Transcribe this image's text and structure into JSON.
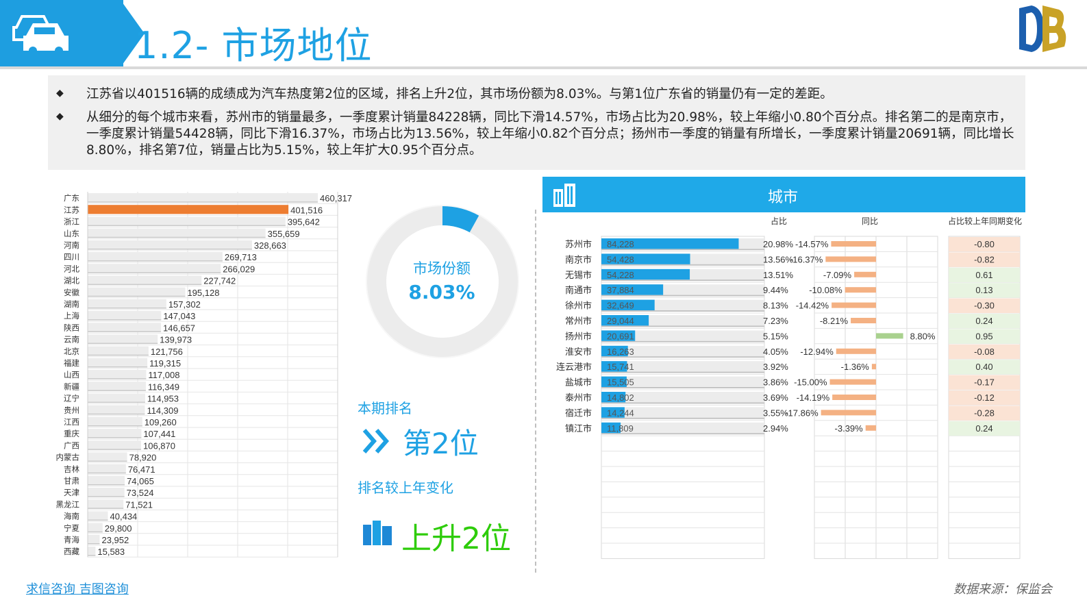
{
  "header": {
    "title": "1.2- 市场地位"
  },
  "summary": {
    "p1": "江苏省以401516辆的成绩成为汽车热度第2位的区域，排名上升2位，其市场份额为8.03%。与第1位广东省的销量仍有一定的差距。",
    "p2": "从细分的每个城市来看，苏州市的销量最多，一季度累计销量84228辆，同比下滑14.57%，市场占比为20.98%，较上年缩小0.80个百分点。排名第二的是南京市，一季度累计销量54428辆，同比下滑16.37%，市场占比为13.56%，较上年缩小0.82个百分点；扬州市一季度的销量有所增长，一季度累计销量20691辆，同比增长8.80%，排名第7位，销量占比为5.15%，较上年扩大0.95个百分点。"
  },
  "colors": {
    "accent": "#1ea1e3",
    "highlight": "#ed7d31",
    "neg": "#f4b183",
    "pos": "#a9d18e",
    "green_text": "#2ecc0a"
  },
  "chart_data": [
    {
      "type": "bar",
      "categories": [
        "广东",
        "江苏",
        "浙江",
        "山东",
        "河南",
        "四川",
        "河北",
        "湖北",
        "安徽",
        "湖南",
        "上海",
        "陕西",
        "云南",
        "北京",
        "福建",
        "山西",
        "新疆",
        "辽宁",
        "贵州",
        "江西",
        "重庆",
        "广西",
        "内蒙古",
        "吉林",
        "甘肃",
        "天津",
        "黑龙江",
        "海南",
        "宁夏",
        "青海",
        "西藏"
      ],
      "values": [
        460317,
        401516,
        395642,
        355659,
        328663,
        269713,
        266029,
        227742,
        195128,
        157302,
        147043,
        146657,
        139973,
        121756,
        119315,
        117008,
        116349,
        114953,
        114309,
        109260,
        107441,
        106870,
        78920,
        76471,
        74065,
        73524,
        71521,
        40434,
        29800,
        23952,
        15583
      ],
      "labels": [
        "460,317",
        "401,516",
        "395,642",
        "355,659",
        "328,663",
        "269,713",
        "266,029",
        "227,742",
        "195,128",
        "157,302",
        "147,043",
        "146,657",
        "139,973",
        "121,756",
        "119,315",
        "117,008",
        "116,349",
        "114,953",
        "114,309",
        "109,260",
        "107,441",
        "106,870",
        "78,920",
        "76,471",
        "74,065",
        "73,524",
        "71,521",
        "40,434",
        "29,800",
        "23,952",
        "15,583"
      ],
      "highlight": "江苏"
    },
    {
      "type": "pie",
      "title": "市场份额",
      "label": "8.03%",
      "values": [
        8.03,
        91.97
      ]
    },
    {
      "type": "table",
      "title": "城市",
      "headers": {
        "share": "占比",
        "yoy": "同比",
        "change": "占比较上年同期变化"
      },
      "cities": [
        "苏州市",
        "南京市",
        "无锡市",
        "南通市",
        "徐州市",
        "常州市",
        "扬州市",
        "淮安市",
        "连云港市",
        "盐城市",
        "泰州市",
        "宿迁市",
        "镇江市"
      ],
      "sales": [
        84228,
        54428,
        54228,
        37884,
        32649,
        29044,
        20691,
        16263,
        15741,
        15505,
        14802,
        14244,
        11809
      ],
      "sales_labels": [
        "84,228",
        "54,428",
        "54,228",
        "37,884",
        "32,649",
        "29,044",
        "20,691",
        "16,263",
        "15,741",
        "15,505",
        "14,802",
        "14,244",
        "11,809"
      ],
      "share": [
        "20.98%",
        "13.56%",
        "13.51%",
        "9.44%",
        "8.13%",
        "7.23%",
        "5.15%",
        "4.05%",
        "3.92%",
        "3.86%",
        "3.69%",
        "3.55%",
        "2.94%"
      ],
      "yoy": [
        -14.57,
        -16.37,
        -7.09,
        -10.08,
        -14.42,
        -8.21,
        8.8,
        -12.94,
        -1.36,
        -15.0,
        -14.19,
        -17.86,
        -3.39
      ],
      "yoy_labels": [
        "-14.57%",
        "-16.37%",
        "-7.09%",
        "-10.08%",
        "-14.42%",
        "-8.21%",
        "8.80%",
        "-12.94%",
        "-1.36%",
        "-15.00%",
        "-14.19%",
        "-17.86%",
        "-3.39%"
      ],
      "change": [
        "-0.80",
        "-0.82",
        "0.61",
        "0.13",
        "-0.30",
        "0.24",
        "0.95",
        "-0.08",
        "0.40",
        "-0.17",
        "-0.12",
        "-0.28",
        "0.24"
      ]
    }
  ],
  "rank": {
    "label": "本期排名",
    "value": "第2位",
    "change_label": "排名较上年变化",
    "change_value": "上升2位"
  },
  "footer": {
    "left": "求信咨询  吉图咨询",
    "right": "数据来源：保监会"
  },
  "icons": [
    "cars-icon",
    "logo-db",
    "building-icon",
    "double-chevron-icon",
    "bar-chart-icon"
  ]
}
